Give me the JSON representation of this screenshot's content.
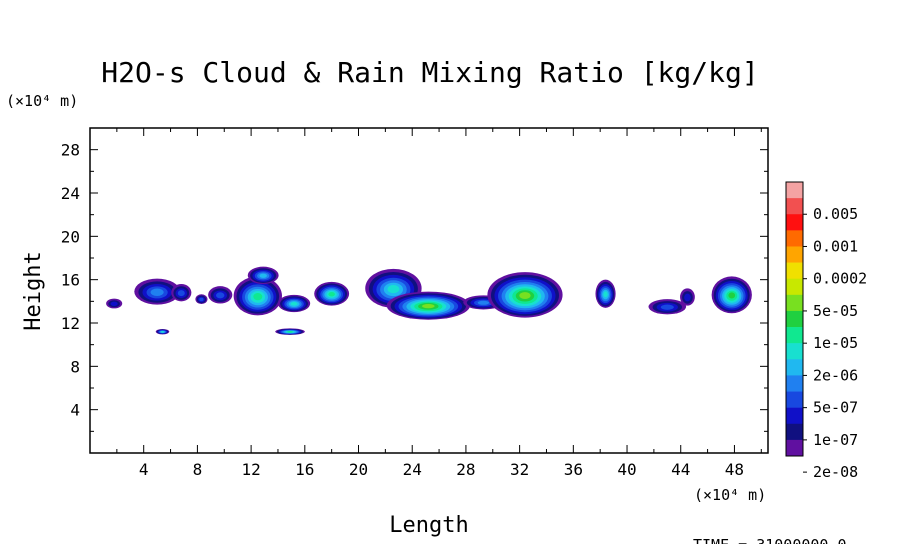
{
  "chart_data": {
    "type": "heatmap",
    "title": "H2O-s Cloud & Rain Mixing Ratio [kg/kg]",
    "xlabel": "Length",
    "ylabel": "Height",
    "x_unit": "(×10⁴ m)",
    "y_unit": "(×10⁴ m)",
    "xlim": [
      0,
      50.5
    ],
    "ylim": [
      0,
      30
    ],
    "x_ticks": [
      4,
      8,
      12,
      16,
      20,
      24,
      28,
      32,
      36,
      40,
      44,
      48
    ],
    "y_ticks": [
      4,
      8,
      12,
      16,
      20,
      24,
      28
    ],
    "colorbar": {
      "labels": [
        "0.005",
        "0.001",
        "0.0002",
        "5e-05",
        "1e-05",
        "2e-06",
        "5e-07",
        "1e-07",
        "2e-08"
      ],
      "colors": [
        "#f4a3a3",
        "#f25050",
        "#ff1010",
        "#ff6a00",
        "#ffa500",
        "#f0e000",
        "#c8e800",
        "#78e020",
        "#20d040",
        "#10e890",
        "#18e0d0",
        "#20b8f0",
        "#2080f0",
        "#1848e0",
        "#1010c8",
        "#101080",
        "#6010a0"
      ]
    },
    "clouds": [
      {
        "x": 1.8,
        "y": 13.8,
        "w": 1.2,
        "h": 0.9,
        "level": 2
      },
      {
        "x": 5.0,
        "y": 14.9,
        "w": 3.4,
        "h": 2.4,
        "level": 4
      },
      {
        "x": 6.8,
        "y": 14.8,
        "w": 1.5,
        "h": 1.6,
        "level": 3
      },
      {
        "x": 8.3,
        "y": 14.2,
        "w": 0.9,
        "h": 0.9,
        "level": 3
      },
      {
        "x": 9.7,
        "y": 14.6,
        "w": 1.8,
        "h": 1.6,
        "level": 3
      },
      {
        "x": 12.5,
        "y": 14.5,
        "w": 3.6,
        "h": 3.6,
        "level": 7
      },
      {
        "x": 12.9,
        "y": 16.4,
        "w": 2.3,
        "h": 1.6,
        "level": 5
      },
      {
        "x": 15.2,
        "y": 13.8,
        "w": 2.4,
        "h": 1.6,
        "level": 6
      },
      {
        "x": 18.0,
        "y": 14.7,
        "w": 2.6,
        "h": 2.2,
        "level": 7
      },
      {
        "x": 22.6,
        "y": 15.2,
        "w": 4.2,
        "h": 3.6,
        "level": 6
      },
      {
        "x": 25.2,
        "y": 13.6,
        "w": 6.2,
        "h": 2.6,
        "level": 9
      },
      {
        "x": 29.3,
        "y": 13.9,
        "w": 3.0,
        "h": 1.3,
        "level": 4
      },
      {
        "x": 32.4,
        "y": 14.6,
        "w": 5.6,
        "h": 4.2,
        "level": 9
      },
      {
        "x": 38.4,
        "y": 14.7,
        "w": 1.5,
        "h": 2.6,
        "level": 6
      },
      {
        "x": 43.0,
        "y": 13.5,
        "w": 2.8,
        "h": 1.4,
        "level": 3
      },
      {
        "x": 44.5,
        "y": 14.4,
        "w": 1.1,
        "h": 1.6,
        "level": 2
      },
      {
        "x": 47.8,
        "y": 14.6,
        "w": 3.0,
        "h": 3.4,
        "level": 8
      },
      {
        "x": 5.4,
        "y": 11.2,
        "w": 1.0,
        "h": 0.5,
        "level": 6
      },
      {
        "x": 14.9,
        "y": 11.2,
        "w": 2.2,
        "h": 0.6,
        "level": 7
      }
    ]
  },
  "footer": {
    "time_label": "TIME = 31000000.0"
  }
}
